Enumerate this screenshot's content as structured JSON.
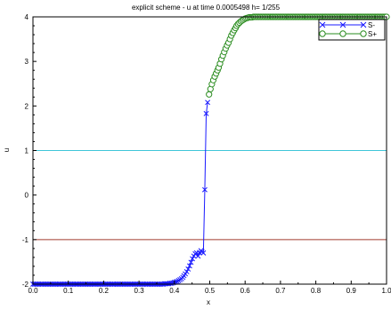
{
  "chart_data": {
    "type": "line",
    "title": "explicit scheme - u at time 0.0005498   h= 1/255",
    "xlabel": "x",
    "ylabel": "u",
    "xlim": [
      0,
      1
    ],
    "ylim": [
      -2,
      4
    ],
    "x_ticks": [
      "0.0",
      "0.1",
      "0.2",
      "0.3",
      "0.4",
      "0.5",
      "0.6",
      "0.7",
      "0.8",
      "0.9",
      "1.0"
    ],
    "y_ticks": [
      "-2",
      "-1",
      "0",
      "1",
      "2",
      "3",
      "4"
    ],
    "grid": false,
    "legend_position": "top-right",
    "reference_lines": [
      {
        "y": 1,
        "color": "#3fc6d9"
      },
      {
        "y": -1,
        "color": "#a03a2e"
      }
    ],
    "series": [
      {
        "name": "S-",
        "color": "#1a1aff",
        "marker": "x",
        "x": [
          0.0,
          0.004,
          0.008,
          0.012,
          0.016,
          0.02,
          0.024,
          0.027,
          0.031,
          0.035,
          0.039,
          0.043,
          0.047,
          0.051,
          0.055,
          0.059,
          0.063,
          0.067,
          0.071,
          0.075,
          0.078,
          0.082,
          0.086,
          0.09,
          0.094,
          0.098,
          0.102,
          0.106,
          0.11,
          0.114,
          0.118,
          0.122,
          0.125,
          0.129,
          0.133,
          0.137,
          0.141,
          0.145,
          0.149,
          0.153,
          0.157,
          0.161,
          0.165,
          0.169,
          0.173,
          0.176,
          0.18,
          0.184,
          0.188,
          0.192,
          0.196,
          0.2,
          0.204,
          0.208,
          0.212,
          0.216,
          0.22,
          0.224,
          0.227,
          0.231,
          0.235,
          0.239,
          0.243,
          0.247,
          0.251,
          0.255,
          0.259,
          0.263,
          0.267,
          0.271,
          0.275,
          0.278,
          0.282,
          0.286,
          0.29,
          0.294,
          0.298,
          0.302,
          0.306,
          0.31,
          0.314,
          0.318,
          0.322,
          0.325,
          0.329,
          0.333,
          0.337,
          0.341,
          0.345,
          0.349,
          0.353,
          0.357,
          0.361,
          0.365,
          0.369,
          0.373,
          0.376,
          0.38,
          0.384,
          0.388,
          0.392,
          0.396,
          0.4,
          0.404,
          0.408,
          0.412,
          0.416,
          0.42,
          0.424,
          0.427,
          0.431,
          0.435,
          0.439,
          0.443,
          0.447,
          0.451,
          0.455,
          0.459,
          0.463,
          0.467,
          0.471,
          0.475,
          0.478,
          0.482,
          0.486,
          0.49,
          0.494
        ],
        "y": [
          -2.0,
          -2.0,
          -2.0,
          -2.0,
          -2.0,
          -2.0,
          -2.0,
          -2.0,
          -2.0,
          -2.0,
          -2.0,
          -2.0,
          -2.0,
          -2.0,
          -2.0,
          -2.0,
          -2.0,
          -2.0,
          -2.0,
          -2.0,
          -2.0,
          -2.0,
          -2.0,
          -2.0,
          -2.0,
          -2.0,
          -2.0,
          -2.0,
          -2.0,
          -2.0,
          -2.0,
          -2.0,
          -2.0,
          -2.0,
          -2.0,
          -2.0,
          -2.0,
          -2.0,
          -2.0,
          -2.0,
          -2.0,
          -2.0,
          -2.0,
          -2.0,
          -2.0,
          -2.0,
          -2.0,
          -2.0,
          -2.0,
          -2.0,
          -2.0,
          -2.0,
          -2.0,
          -2.0,
          -2.0,
          -2.0,
          -2.0,
          -2.0,
          -2.0,
          -2.0,
          -2.0,
          -2.0,
          -2.0,
          -2.0,
          -2.0,
          -2.0,
          -2.0,
          -2.0,
          -2.0,
          -2.0,
          -2.0,
          -2.0,
          -2.0,
          -2.0,
          -2.0,
          -2.0,
          -2.0,
          -2.0,
          -2.0,
          -2.0,
          -2.0,
          -2.0,
          -2.0,
          -2.0,
          -2.0,
          -2.0,
          -2.0,
          -2.0,
          -2.0,
          -2.0,
          -2.0,
          -2.0,
          -2.0,
          -2.0,
          -2.0,
          -1.99,
          -1.99,
          -1.99,
          -1.99,
          -1.98,
          -1.98,
          -1.97,
          -1.96,
          -1.95,
          -1.94,
          -1.92,
          -1.9,
          -1.88,
          -1.85,
          -1.81,
          -1.77,
          -1.72,
          -1.66,
          -1.59,
          -1.51,
          -1.43,
          -1.37,
          -1.32,
          -1.3,
          -1.37,
          -1.29,
          -1.25,
          -1.27,
          -1.3,
          0.12,
          1.83,
          2.08
        ]
      },
      {
        "name": "S+",
        "color": "#2a8c1f",
        "marker": "o",
        "x": [
          0.498,
          0.502,
          0.506,
          0.51,
          0.514,
          0.518,
          0.522,
          0.525,
          0.529,
          0.533,
          0.537,
          0.541,
          0.545,
          0.549,
          0.553,
          0.557,
          0.561,
          0.565,
          0.569,
          0.573,
          0.576,
          0.58,
          0.584,
          0.588,
          0.592,
          0.596,
          0.6,
          0.604,
          0.608,
          0.612,
          0.616,
          0.62,
          0.624,
          0.627,
          0.631,
          0.635,
          0.639,
          0.643,
          0.647,
          0.651,
          0.655,
          0.659,
          0.663,
          0.667,
          0.671,
          0.675,
          0.678,
          0.682,
          0.686,
          0.69,
          0.694,
          0.698,
          0.702,
          0.706,
          0.71,
          0.714,
          0.718,
          0.722,
          0.725,
          0.729,
          0.733,
          0.737,
          0.741,
          0.745,
          0.749,
          0.753,
          0.757,
          0.761,
          0.765,
          0.769,
          0.773,
          0.776,
          0.78,
          0.784,
          0.788,
          0.792,
          0.796,
          0.8,
          0.804,
          0.808,
          0.812,
          0.816,
          0.82,
          0.824,
          0.827,
          0.831,
          0.835,
          0.839,
          0.843,
          0.847,
          0.851,
          0.855,
          0.859,
          0.863,
          0.867,
          0.871,
          0.875,
          0.878,
          0.882,
          0.886,
          0.89,
          0.894,
          0.898,
          0.902,
          0.906,
          0.91,
          0.914,
          0.918,
          0.922,
          0.925,
          0.929,
          0.933,
          0.937,
          0.941,
          0.945,
          0.949,
          0.953,
          0.957,
          0.961,
          0.965,
          0.969,
          0.973,
          0.976,
          0.98,
          0.984,
          0.988,
          0.992,
          0.996,
          1.0
        ],
        "y": [
          2.26,
          2.38,
          2.49,
          2.58,
          2.66,
          2.73,
          2.8,
          2.86,
          2.95,
          3.05,
          3.13,
          3.21,
          3.29,
          3.36,
          3.42,
          3.5,
          3.58,
          3.64,
          3.7,
          3.75,
          3.8,
          3.84,
          3.87,
          3.9,
          3.92,
          3.94,
          3.96,
          3.97,
          3.98,
          3.99,
          3.99,
          3.99,
          4.0,
          4.0,
          4.0,
          4.0,
          4.0,
          4.0,
          4.0,
          4.0,
          4.0,
          4.0,
          4.0,
          4.0,
          4.0,
          4.0,
          4.0,
          4.0,
          4.0,
          4.0,
          4.0,
          4.0,
          4.0,
          4.0,
          4.0,
          4.0,
          4.0,
          4.0,
          4.0,
          4.0,
          4.0,
          4.0,
          4.0,
          4.0,
          4.0,
          4.0,
          4.0,
          4.0,
          4.0,
          4.0,
          4.0,
          4.0,
          4.0,
          4.0,
          4.0,
          4.0,
          4.0,
          4.0,
          4.0,
          4.0,
          4.0,
          4.0,
          4.0,
          4.0,
          4.0,
          4.0,
          4.0,
          4.0,
          4.0,
          4.0,
          4.0,
          4.0,
          4.0,
          4.0,
          4.0,
          4.0,
          4.0,
          4.0,
          4.0,
          4.0,
          4.0,
          4.0,
          4.0,
          4.0,
          4.0,
          4.0,
          4.0,
          4.0,
          4.0,
          4.0,
          4.0,
          4.0,
          4.0,
          4.0,
          4.0,
          4.0,
          4.0,
          4.0,
          4.0,
          4.0,
          4.0,
          4.0,
          4.0,
          4.0,
          4.0,
          4.0,
          4.0,
          4.0,
          4.0
        ]
      }
    ]
  }
}
